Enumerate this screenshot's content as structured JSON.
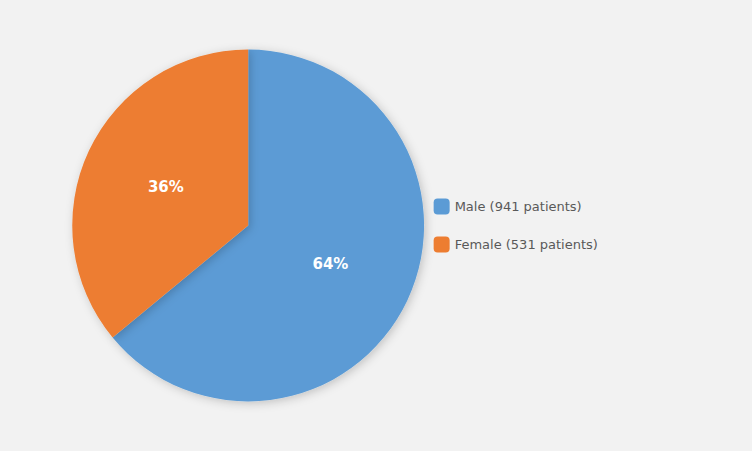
{
  "chart_data": {
    "type": "pie",
    "categories": [
      "Male (941 patients)",
      "Female (531 patients)"
    ],
    "values": [
      64,
      36
    ],
    "value_labels": [
      "64%",
      "36%"
    ],
    "colors": [
      "#5B9BD5",
      "#ED7D31"
    ],
    "data_labels": true,
    "legend": "right"
  }
}
